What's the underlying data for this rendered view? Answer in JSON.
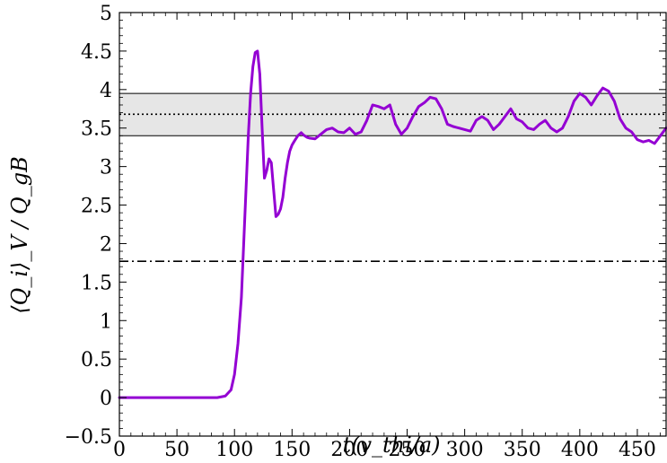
{
  "chart_data": {
    "type": "line",
    "title": "",
    "xlabel": "t(v_thi/a)",
    "ylabel": "⟨Q_i⟩_V / Q_gB",
    "xlim": [
      0,
      475
    ],
    "ylim": [
      -0.5,
      5
    ],
    "xticks": [
      0,
      50,
      100,
      150,
      200,
      250,
      300,
      350,
      400,
      450
    ],
    "xtick_labels": [
      "0",
      "50",
      "100",
      "150",
      "200",
      "250",
      "300",
      "350",
      "400",
      "450"
    ],
    "yticks": [
      -0.5,
      0,
      0.5,
      1,
      1.5,
      2,
      2.5,
      3,
      3.5,
      4,
      4.5,
      5
    ],
    "ytick_labels": [
      "−0.5",
      "0",
      "0.5",
      "1",
      "1.5",
      "2",
      "2.5",
      "3",
      "3.5",
      "4",
      "4.5",
      "5"
    ],
    "grid": false,
    "series": [
      {
        "color": "#9400D3",
        "x": [
          0,
          60,
          85,
          92,
          97,
          100,
          103,
          106,
          108,
          110,
          112,
          114,
          116,
          118,
          120,
          122,
          124,
          126,
          128,
          130,
          132,
          134,
          136,
          138,
          140,
          142,
          144,
          146,
          148,
          150,
          152,
          155,
          158,
          160,
          163,
          165,
          170,
          175,
          180,
          185,
          190,
          195,
          200,
          205,
          210,
          215,
          220,
          225,
          230,
          235,
          240,
          245,
          250,
          255,
          260,
          265,
          270,
          275,
          280,
          285,
          290,
          295,
          300,
          305,
          310,
          315,
          320,
          325,
          330,
          335,
          340,
          345,
          350,
          355,
          360,
          365,
          370,
          375,
          380,
          385,
          390,
          395,
          400,
          405,
          410,
          415,
          420,
          425,
          430,
          435,
          440,
          445,
          450,
          455,
          460,
          465,
          470,
          475
        ],
        "y": [
          0.0,
          0.0,
          0.0,
          0.02,
          0.1,
          0.3,
          0.7,
          1.3,
          2.0,
          2.7,
          3.4,
          3.95,
          4.3,
          4.48,
          4.5,
          4.2,
          3.5,
          2.85,
          2.95,
          3.1,
          3.05,
          2.7,
          2.35,
          2.38,
          2.45,
          2.6,
          2.85,
          3.05,
          3.2,
          3.28,
          3.33,
          3.4,
          3.44,
          3.41,
          3.38,
          3.37,
          3.36,
          3.42,
          3.48,
          3.5,
          3.45,
          3.44,
          3.5,
          3.42,
          3.45,
          3.6,
          3.8,
          3.78,
          3.75,
          3.8,
          3.55,
          3.42,
          3.5,
          3.65,
          3.78,
          3.83,
          3.9,
          3.88,
          3.75,
          3.55,
          3.52,
          3.5,
          3.48,
          3.46,
          3.6,
          3.65,
          3.6,
          3.48,
          3.55,
          3.65,
          3.75,
          3.62,
          3.58,
          3.5,
          3.48,
          3.55,
          3.6,
          3.5,
          3.45,
          3.5,
          3.65,
          3.85,
          3.95,
          3.9,
          3.8,
          3.92,
          4.02,
          3.98,
          3.85,
          3.62,
          3.5,
          3.45,
          3.35,
          3.32,
          3.34,
          3.3,
          3.4,
          3.5
        ]
      }
    ],
    "hlines": [
      {
        "y": 3.95,
        "style": "solid",
        "color": "#000000"
      },
      {
        "y": 3.4,
        "style": "solid",
        "color": "#000000"
      },
      {
        "y": 3.68,
        "style": "dotted",
        "color": "#000000"
      },
      {
        "y": 1.77,
        "style": "dashdot",
        "color": "#000000"
      }
    ],
    "bands": [
      {
        "y1": 3.4,
        "y2": 3.95,
        "color": "#e6e6e6"
      }
    ]
  }
}
